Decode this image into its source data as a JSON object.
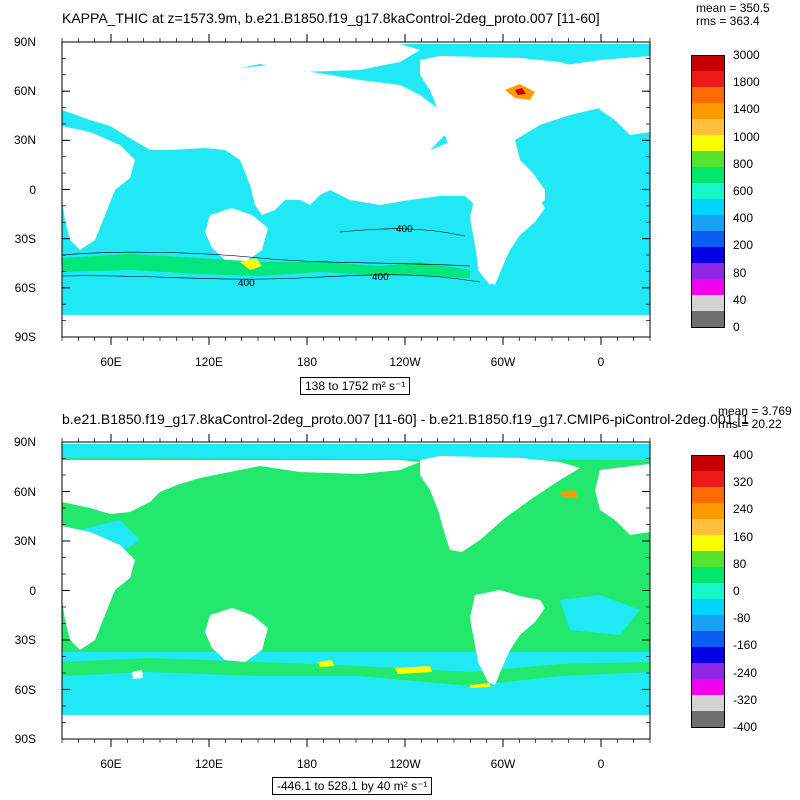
{
  "chart_data": [
    {
      "type": "heatmap",
      "title": "KAPPA_THIC at z=1573.9m, b.e21.B1850.f19_g17.8kaControl-2deg_proto.007 [11-60]",
      "mean_text": "mean = 350.5",
      "rms_text": "rms = 363.4",
      "range_text": "138 to 1752 m² s⁻¹",
      "x_ticks": [
        "60E",
        "120E",
        "180",
        "120W",
        "60W",
        "0"
      ],
      "y_ticks": [
        "90N",
        "60N",
        "30N",
        "0",
        "30S",
        "60S",
        "90S"
      ],
      "xlim_lon": [
        30,
        390
      ],
      "ylim_lat": [
        -90,
        90
      ],
      "contour_labels": [
        "400",
        "400",
        "400"
      ],
      "colorbar_levels": [
        "3000",
        "1800",
        "1400",
        "1000",
        "800",
        "600",
        "400",
        "200",
        "80",
        "40",
        "0"
      ],
      "colorbar_colors": [
        "#c40000",
        "#ee1a1a",
        "#ff6a00",
        "#ff9a00",
        "#ffbe3c",
        "#ffff00",
        "#55e32e",
        "#00e66e",
        "#18f5c8",
        "#00d4ff",
        "#1aa0f5",
        "#0a5ef2",
        "#0000e6",
        "#8c28e6",
        "#f000f0",
        "#d3d3d3",
        "#707070"
      ],
      "background_value_color": "#20e8f5"
    },
    {
      "type": "heatmap",
      "title": "b.e21.B1850.f19_g17.8kaControl-2deg_proto.007 [11-60] - b.e21.B1850.f19_g17.CMIP6-piControl-2deg.001 [1",
      "mean_text": "mean = 3.769",
      "rms_text": "rms = 20.22",
      "range_text": "-446.1 to 528.1 by 40 m² s⁻¹",
      "x_ticks": [
        "60E",
        "120E",
        "180",
        "120W",
        "60W",
        "0"
      ],
      "y_ticks": [
        "90N",
        "60N",
        "30N",
        "0",
        "30S",
        "60S",
        "90S"
      ],
      "xlim_lon": [
        30,
        390
      ],
      "ylim_lat": [
        -90,
        90
      ],
      "colorbar_levels": [
        "400",
        "320",
        "240",
        "160",
        "80",
        "0",
        "-80",
        "-160",
        "-240",
        "-320",
        "-400"
      ],
      "colorbar_colors": [
        "#c40000",
        "#ee1a1a",
        "#ff6a00",
        "#ff9a00",
        "#ffbe3c",
        "#ffff00",
        "#55e32e",
        "#00e66e",
        "#18f5c8",
        "#00d4ff",
        "#1aa0f5",
        "#0a5ef2",
        "#0000e6",
        "#8c28e6",
        "#f000f0",
        "#d3d3d3",
        "#707070"
      ],
      "background_value_color": "#22e86e"
    }
  ]
}
